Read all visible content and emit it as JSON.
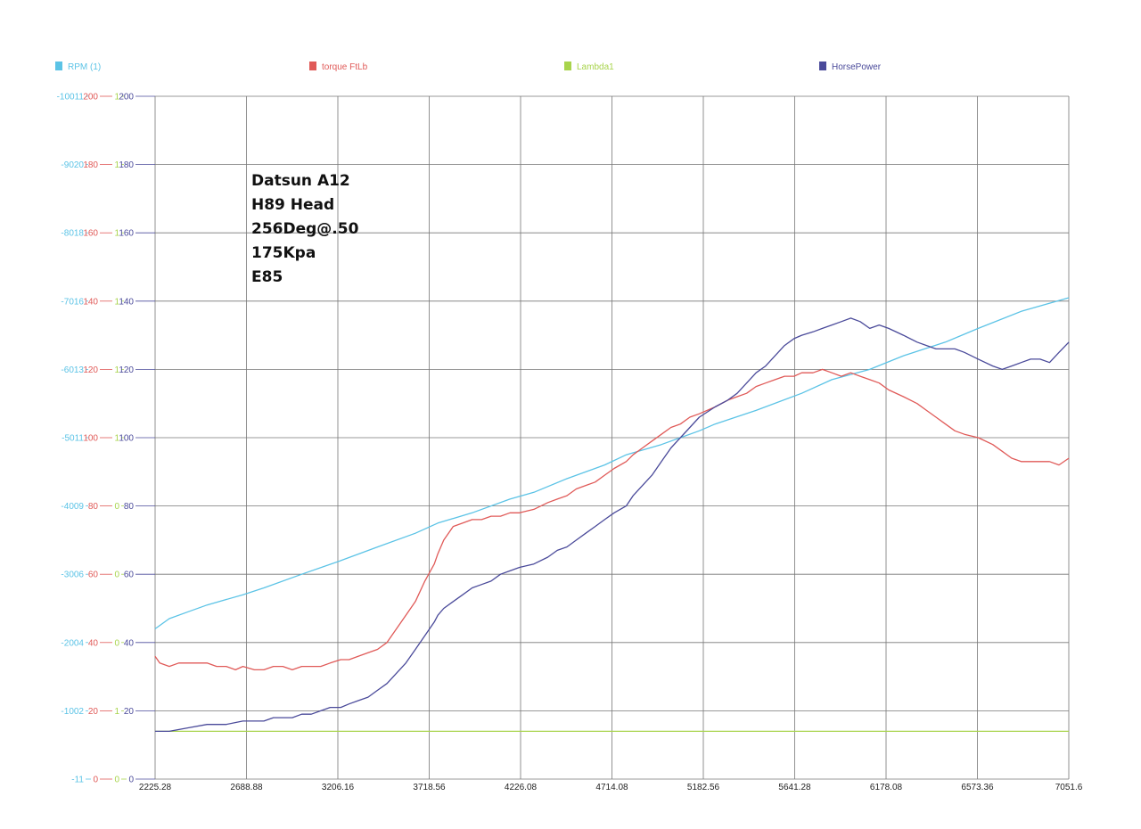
{
  "chart_data": {
    "type": "line",
    "title": "",
    "annotation_lines": [
      "Datsun A12",
      "H89 Head",
      "256Deg@.50",
      "175Kpa",
      "E85"
    ],
    "legend": [
      {
        "name": "RPM (1)",
        "color": "#5bc3e6"
      },
      {
        "name": "torque FtLb",
        "color": "#e05a58"
      },
      {
        "name": "Lambda1",
        "color": "#a8d44c"
      },
      {
        "name": "HorsePower",
        "color": "#4a4a9a"
      }
    ],
    "x_tick_labels": [
      "2225.28",
      "2688.88",
      "3206.16",
      "3718.56",
      "4226.08",
      "4714.08",
      "5182.56",
      "5641.28",
      "6178.08",
      "6573.36",
      "7051.6"
    ],
    "xlim": [
      2225.28,
      7051.6
    ],
    "y_axes": [
      {
        "color": "#5bc3e6",
        "ticks": [
          "-11",
          "-1002",
          "-2004",
          "-3006",
          "-4009",
          "-5011",
          "-6013",
          "-7016",
          "-8018",
          "-9020",
          "-10011"
        ]
      },
      {
        "color": "#e05a58",
        "ticks": [
          "0",
          "20",
          "40",
          "60",
          "80",
          "100",
          "120",
          "140",
          "160",
          "180",
          "200"
        ]
      },
      {
        "color": "#a8d44c",
        "ticks": [
          "0",
          "1",
          "0",
          "0",
          "0",
          "1",
          "1",
          "1",
          "1",
          "1",
          "1"
        ]
      },
      {
        "color": "#4a4a9a",
        "ticks": [
          "0",
          "20",
          "40",
          "60",
          "80",
          "100",
          "120",
          "140",
          "160",
          "180",
          "200"
        ]
      }
    ],
    "ylim": [
      0,
      200
    ],
    "grid": true,
    "series": [
      {
        "name": "RPM (1)",
        "color": "#5bc3e6",
        "x": [
          2225,
          2300,
          2400,
          2500,
          2689,
          2800,
          3000,
          3206,
          3400,
          3600,
          3719,
          3900,
          4100,
          4226,
          4400,
          4600,
          4714,
          4900,
          5100,
          5183,
          5400,
          5641,
          5800,
          6000,
          6178,
          6400,
          6573,
          6800,
          7052
        ],
        "y": [
          44,
          47,
          49,
          51,
          54,
          56,
          60,
          64,
          68,
          72,
          75,
          78,
          82,
          84,
          88,
          92,
          95,
          98,
          102,
          104,
          108,
          113,
          117,
          120,
          124,
          128,
          132,
          137,
          141
        ]
      },
      {
        "name": "torque FtLb",
        "color": "#e05a58",
        "x": [
          2225,
          2250,
          2300,
          2350,
          2400,
          2450,
          2500,
          2550,
          2600,
          2650,
          2689,
          2750,
          2800,
          2850,
          2900,
          2950,
          3000,
          3050,
          3100,
          3150,
          3206,
          3250,
          3300,
          3350,
          3400,
          3450,
          3500,
          3550,
          3600,
          3650,
          3700,
          3719,
          3750,
          3800,
          3850,
          3900,
          3950,
          4000,
          4050,
          4100,
          4150,
          4226,
          4300,
          4350,
          4400,
          4450,
          4500,
          4550,
          4600,
          4650,
          4714,
          4750,
          4800,
          4850,
          4900,
          4950,
          5000,
          5050,
          5100,
          5183,
          5250,
          5300,
          5350,
          5400,
          5450,
          5500,
          5550,
          5600,
          5641,
          5700,
          5750,
          5800,
          5850,
          5900,
          5950,
          6000,
          6050,
          6100,
          6178,
          6250,
          6300,
          6350,
          6400,
          6450,
          6500,
          6573,
          6650,
          6700,
          6750,
          6800,
          6850,
          6900,
          6950,
          7000,
          7052
        ],
        "y": [
          36,
          34,
          33,
          34,
          34,
          34,
          34,
          33,
          33,
          32,
          33,
          32,
          32,
          33,
          33,
          32,
          33,
          33,
          33,
          34,
          35,
          35,
          36,
          37,
          38,
          40,
          44,
          48,
          52,
          58,
          63,
          66,
          70,
          74,
          75,
          76,
          76,
          77,
          77,
          78,
          78,
          79,
          81,
          82,
          83,
          85,
          86,
          87,
          89,
          91,
          93,
          95,
          97,
          99,
          101,
          103,
          104,
          106,
          107,
          109,
          111,
          112,
          113,
          115,
          116,
          117,
          118,
          118,
          119,
          119,
          120,
          119,
          118,
          119,
          118,
          117,
          116,
          114,
          112,
          110,
          108,
          106,
          104,
          102,
          101,
          100,
          98,
          96,
          94,
          93,
          93,
          93,
          93,
          92,
          94
        ]
      },
      {
        "name": "Lambda1",
        "color": "#a8d44c",
        "x": [
          2225,
          7052
        ],
        "y": [
          14,
          14
        ]
      },
      {
        "name": "HorsePower",
        "color": "#4a4a9a",
        "x": [
          2225,
          2300,
          2400,
          2500,
          2600,
          2689,
          2750,
          2800,
          2850,
          2900,
          2950,
          3000,
          3050,
          3100,
          3150,
          3206,
          3250,
          3300,
          3350,
          3400,
          3450,
          3500,
          3550,
          3600,
          3650,
          3700,
          3719,
          3750,
          3800,
          3850,
          3900,
          3950,
          4000,
          4050,
          4100,
          4150,
          4226,
          4300,
          4350,
          4400,
          4450,
          4500,
          4550,
          4600,
          4650,
          4714,
          4750,
          4800,
          4850,
          4900,
          4950,
          5000,
          5050,
          5100,
          5183,
          5250,
          5300,
          5350,
          5400,
          5450,
          5500,
          5550,
          5600,
          5641,
          5700,
          5750,
          5800,
          5850,
          5900,
          5950,
          6000,
          6050,
          6100,
          6178,
          6250,
          6300,
          6350,
          6400,
          6450,
          6500,
          6573,
          6650,
          6700,
          6750,
          6800,
          6850,
          6900,
          6950,
          7000,
          7052
        ],
        "y": [
          14,
          14,
          15,
          16,
          16,
          17,
          17,
          17,
          18,
          18,
          18,
          19,
          19,
          20,
          21,
          21,
          22,
          23,
          24,
          26,
          28,
          31,
          34,
          38,
          42,
          46,
          48,
          50,
          52,
          54,
          56,
          57,
          58,
          60,
          61,
          62,
          63,
          65,
          67,
          68,
          70,
          72,
          74,
          76,
          78,
          80,
          83,
          86,
          89,
          93,
          97,
          100,
          103,
          106,
          109,
          111,
          113,
          116,
          119,
          121,
          124,
          127,
          129,
          130,
          131,
          132,
          133,
          134,
          135,
          134,
          132,
          133,
          132,
          130,
          128,
          127,
          126,
          126,
          126,
          125,
          123,
          121,
          120,
          121,
          122,
          123,
          123,
          122,
          125,
          128
        ]
      }
    ]
  }
}
